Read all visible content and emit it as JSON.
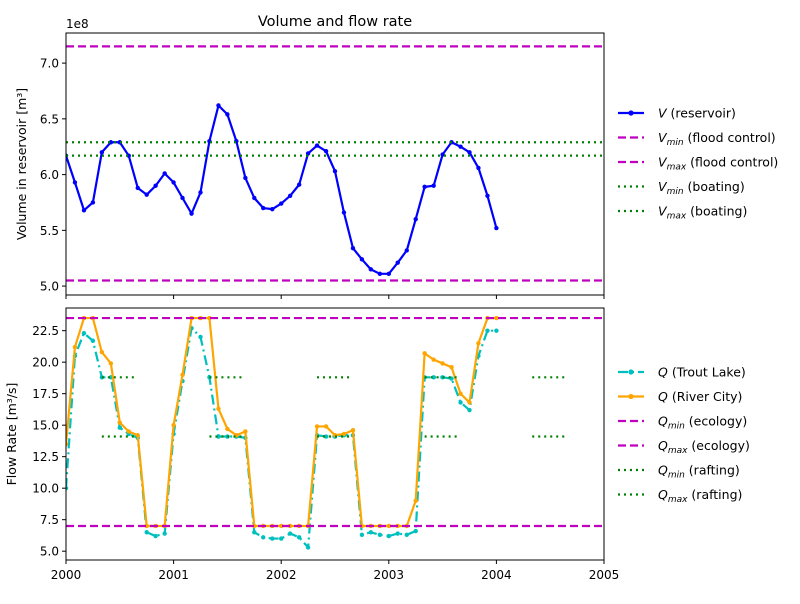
{
  "chart_data": [
    {
      "type": "line",
      "title": "Volume and flow rate",
      "xlabel": "",
      "ylabel": "Volume in reservoir [m³]",
      "offset_label": "1e8",
      "xlim": [
        2000,
        2005
      ],
      "ylim": [
        4.92,
        7.27
      ],
      "y_scale_factor": 100000000,
      "xticks": [
        2000,
        2001,
        2002,
        2003,
        2004,
        2005
      ],
      "yticks": [
        5.0,
        5.5,
        6.0,
        6.5,
        7.0
      ],
      "ytick_labels": [
        "5.0",
        "5.5",
        "6.0",
        "6.5",
        "7.0"
      ],
      "grid": false,
      "legend_placement": "right, outside plot",
      "series": [
        {
          "name": "V (reservoir)",
          "name_main": "V",
          "name_sub": "",
          "name_suffix": " (reservoir)",
          "style": "line-dots",
          "color": "#0000ff",
          "x": [
            2000.0,
            2000.083,
            2000.167,
            2000.25,
            2000.333,
            2000.417,
            2000.5,
            2000.583,
            2000.667,
            2000.75,
            2000.833,
            2000.917,
            2001.0,
            2001.083,
            2001.167,
            2001.25,
            2001.333,
            2001.417,
            2001.5,
            2001.583,
            2001.667,
            2001.75,
            2001.833,
            2001.917,
            2002.0,
            2002.083,
            2002.167,
            2002.25,
            2002.333,
            2002.417,
            2002.5,
            2002.583,
            2002.667,
            2002.75,
            2002.833,
            2002.917,
            2003.0,
            2003.083,
            2003.167,
            2003.25,
            2003.333,
            2003.417,
            2003.5,
            2003.583,
            2003.667,
            2003.75,
            2003.833,
            2003.917,
            2004.0
          ],
          "values": [
            6.17,
            5.93,
            5.68,
            5.75,
            6.2,
            6.29,
            6.29,
            6.17,
            5.88,
            5.82,
            5.9,
            6.01,
            5.93,
            5.79,
            5.65,
            5.84,
            6.3,
            6.62,
            6.54,
            6.3,
            5.97,
            5.79,
            5.7,
            5.69,
            5.74,
            5.81,
            5.91,
            6.19,
            6.26,
            6.21,
            6.03,
            5.66,
            5.34,
            5.24,
            5.15,
            5.11,
            5.11,
            5.21,
            5.32,
            5.6,
            5.89,
            5.9,
            6.18,
            6.29,
            6.25,
            6.2,
            6.06,
            5.81,
            5.52
          ]
        },
        {
          "name": "Vmin (flood control)",
          "name_main": "V",
          "name_sub": "min",
          "name_suffix": " (flood control)",
          "style": "dashed",
          "color": "#bf00bf",
          "x": [
            2000,
            2005
          ],
          "values": [
            5.05,
            5.05
          ]
        },
        {
          "name": "Vmax (flood control)",
          "name_main": "V",
          "name_sub": "max",
          "name_suffix": " (flood control)",
          "style": "dashed",
          "color": "#bf00bf",
          "x": [
            2000,
            2005
          ],
          "values": [
            7.15,
            7.15
          ]
        },
        {
          "name": "Vmin (boating)",
          "name_main": "V",
          "name_sub": "min",
          "name_suffix": " (boating)",
          "style": "dotted",
          "color": "#008000",
          "x": [
            2000,
            2005
          ],
          "values": [
            6.17,
            6.17
          ]
        },
        {
          "name": "Vmax (boating)",
          "name_main": "V",
          "name_sub": "max",
          "name_suffix": " (boating)",
          "style": "dotted",
          "color": "#008000",
          "x": [
            2000,
            2005
          ],
          "values": [
            6.29,
            6.29
          ]
        }
      ]
    },
    {
      "type": "line",
      "title": "",
      "xlabel": "",
      "ylabel": "Flow Rate [m³/s]",
      "xlim": [
        2000,
        2005
      ],
      "ylim": [
        4.3,
        24.3
      ],
      "xticks": [
        2000,
        2001,
        2002,
        2003,
        2004,
        2005
      ],
      "xtick_labels": [
        "2000",
        "2001",
        "2002",
        "2003",
        "2004",
        "2005"
      ],
      "yticks": [
        5.0,
        7.5,
        10.0,
        12.5,
        15.0,
        17.5,
        20.0,
        22.5
      ],
      "ytick_labels": [
        "5.0",
        "7.5",
        "10.0",
        "12.5",
        "15.0",
        "17.5",
        "20.0",
        "22.5"
      ],
      "grid": false,
      "legend_placement": "right, outside plot",
      "series": [
        {
          "name": "Q (Trout Lake)",
          "name_main": "Q",
          "name_sub": "",
          "name_suffix": " (Trout Lake)",
          "style": "dashdot-dots",
          "color": "#00bfbf",
          "x": [
            2000.0,
            2000.083,
            2000.167,
            2000.25,
            2000.333,
            2000.417,
            2000.5,
            2000.583,
            2000.667,
            2000.75,
            2000.833,
            2000.917,
            2001.0,
            2001.083,
            2001.167,
            2001.25,
            2001.333,
            2001.417,
            2001.5,
            2001.583,
            2001.667,
            2001.75,
            2001.833,
            2001.917,
            2002.0,
            2002.083,
            2002.167,
            2002.25,
            2002.333,
            2002.417,
            2002.5,
            2002.583,
            2002.667,
            2002.75,
            2002.833,
            2002.917,
            2003.0,
            2003.083,
            2003.167,
            2003.25,
            2003.333,
            2003.417,
            2003.5,
            2003.583,
            2003.667,
            2003.75,
            2003.833,
            2003.917,
            2004.0
          ],
          "values": [
            10.0,
            20.5,
            22.3,
            21.7,
            18.8,
            18.8,
            14.8,
            14.3,
            14.0,
            6.5,
            6.2,
            6.4,
            14.3,
            18.5,
            22.7,
            22.0,
            18.8,
            14.1,
            14.1,
            14.1,
            14.0,
            6.5,
            6.1,
            6.0,
            6.0,
            6.4,
            6.1,
            5.3,
            14.2,
            14.1,
            14.1,
            14.2,
            14.2,
            6.3,
            6.5,
            6.3,
            6.2,
            6.4,
            6.3,
            6.6,
            18.8,
            18.8,
            18.8,
            18.7,
            16.8,
            16.2,
            20.5,
            22.5,
            22.5
          ]
        },
        {
          "name": "Q (River City)",
          "name_main": "Q",
          "name_sub": "",
          "name_suffix": " (River City)",
          "style": "line-dots",
          "color": "#ffa500",
          "x": [
            2000.0,
            2000.083,
            2000.167,
            2000.25,
            2000.333,
            2000.417,
            2000.5,
            2000.583,
            2000.667,
            2000.75,
            2000.833,
            2000.917,
            2001.0,
            2001.083,
            2001.167,
            2001.25,
            2001.333,
            2001.417,
            2001.5,
            2001.583,
            2001.667,
            2001.75,
            2001.833,
            2001.917,
            2002.0,
            2002.083,
            2002.167,
            2002.25,
            2002.333,
            2002.417,
            2002.5,
            2002.583,
            2002.667,
            2002.75,
            2002.833,
            2002.917,
            2003.0,
            2003.083,
            2003.167,
            2003.25,
            2003.333,
            2003.417,
            2003.5,
            2003.583,
            2003.667,
            2003.75,
            2003.833,
            2003.917,
            2004.0
          ],
          "values": [
            13.5,
            21.2,
            23.5,
            23.5,
            20.8,
            19.9,
            15.2,
            14.5,
            14.2,
            7.0,
            7.0,
            7.0,
            15.0,
            19.0,
            23.5,
            23.5,
            23.5,
            16.3,
            14.7,
            14.2,
            14.5,
            7.0,
            7.0,
            7.0,
            7.0,
            7.0,
            7.0,
            7.0,
            14.9,
            14.9,
            14.2,
            14.3,
            14.6,
            7.0,
            7.0,
            7.0,
            7.0,
            7.0,
            7.0,
            9.0,
            20.7,
            20.2,
            19.9,
            19.6,
            17.5,
            16.8,
            21.5,
            23.5,
            23.5
          ]
        },
        {
          "name": "Qmin (ecology)",
          "name_main": "Q",
          "name_sub": "min",
          "name_suffix": " (ecology)",
          "style": "dashed",
          "color": "#bf00bf",
          "x": [
            2000,
            2005
          ],
          "values": [
            7.0,
            7.0
          ]
        },
        {
          "name": "Qmax (ecology)",
          "name_main": "Q",
          "name_sub": "max",
          "name_suffix": " (ecology)",
          "style": "dashed",
          "color": "#bf00bf",
          "x": [
            2000,
            2005
          ],
          "values": [
            23.5,
            23.5
          ]
        },
        {
          "name": "Qmin (rafting)",
          "name_main": "Q",
          "name_sub": "min",
          "name_suffix": " (rafting)",
          "style": "dotted",
          "color": "#008000",
          "segments": [
            [
              2000.333,
              2000.667,
              14.1
            ],
            [
              2001.333,
              2001.667,
              14.1
            ],
            [
              2002.333,
              2002.667,
              14.1
            ],
            [
              2003.333,
              2003.667,
              14.1
            ],
            [
              2004.333,
              2004.667,
              14.1
            ]
          ]
        },
        {
          "name": "Qmax (rafting)",
          "name_main": "Q",
          "name_sub": "max",
          "name_suffix": " (rafting)",
          "style": "dotted",
          "color": "#008000",
          "segments": [
            [
              2000.333,
              2000.667,
              18.8
            ],
            [
              2001.333,
              2001.667,
              18.8
            ],
            [
              2002.333,
              2002.667,
              18.8
            ],
            [
              2003.333,
              2003.667,
              18.8
            ],
            [
              2004.333,
              2004.667,
              18.8
            ]
          ]
        }
      ]
    }
  ]
}
